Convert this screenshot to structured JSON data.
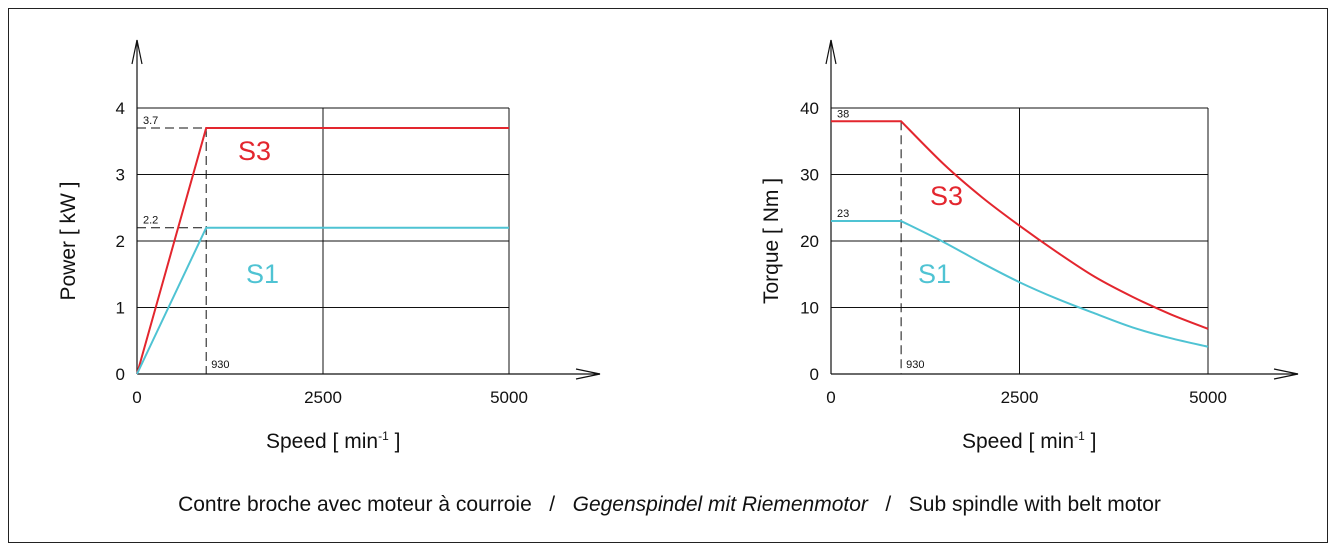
{
  "chart_data": [
    {
      "type": "line",
      "ylabel": "Power   [ kW ]",
      "xlabel_main": "Speed   [ min",
      "xlabel_sup": "-1",
      "xlabel_end": " ]",
      "xlim": [
        0,
        5000
      ],
      "ylim": [
        0,
        4
      ],
      "x_ticks": [
        0,
        2500,
        5000
      ],
      "y_ticks": [
        0,
        1,
        2,
        3,
        4
      ],
      "grid": true,
      "series": [
        {
          "name": "S3",
          "color": "#e3262e",
          "x": [
            0,
            930,
            5000
          ],
          "y": [
            0,
            3.7,
            3.7
          ]
        },
        {
          "name": "S1",
          "color": "#4fc3d3",
          "x": [
            0,
            930,
            5000
          ],
          "y": [
            0,
            2.2,
            2.2
          ]
        }
      ],
      "annotations": {
        "x_marker": "930",
        "y_markers": [
          "3.7",
          "2.2"
        ]
      }
    },
    {
      "type": "line",
      "ylabel": "Torque   [ Nm ]",
      "xlabel_main": "Speed   [ min",
      "xlabel_sup": "-1",
      "xlabel_end": " ]",
      "xlim": [
        0,
        5000
      ],
      "ylim": [
        0,
        40
      ],
      "x_ticks": [
        0,
        2500,
        5000
      ],
      "y_ticks": [
        0,
        10,
        20,
        30,
        40
      ],
      "grid": true,
      "series": [
        {
          "name": "S3",
          "color": "#e3262e",
          "x": [
            0,
            930,
            1500,
            2000,
            2500,
            3000,
            3500,
            4000,
            4500,
            5000
          ],
          "y": [
            38,
            38,
            31.5,
            26.6,
            22.3,
            18.3,
            14.6,
            11.6,
            9.0,
            6.8
          ]
        },
        {
          "name": "S1",
          "color": "#4fc3d3",
          "x": [
            0,
            930,
            1500,
            2000,
            2500,
            3000,
            3500,
            4000,
            4500,
            5000
          ],
          "y": [
            23,
            23,
            19.8,
            16.7,
            13.8,
            11.3,
            9.1,
            7.0,
            5.4,
            4.1
          ]
        }
      ],
      "annotations": {
        "x_marker": "930",
        "y_markers": [
          "38",
          "23"
        ]
      }
    }
  ],
  "caption": {
    "part1": "Contre broche avec moteur à courroie   /   ",
    "part2": "Gegenspindel mit Riemenmotor",
    "part3": "   /   Sub spindle with belt motor"
  }
}
